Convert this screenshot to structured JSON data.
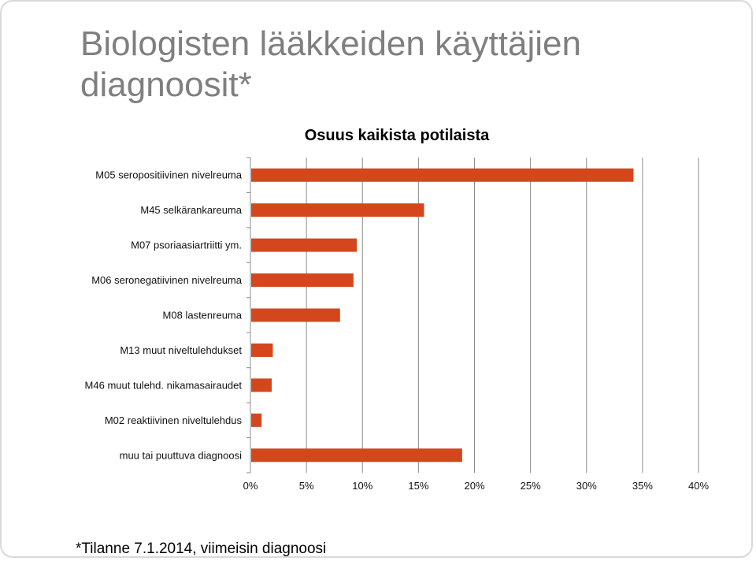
{
  "slide": {
    "title": "Biologisten lääkkeiden käyttäjien diagnoosit*",
    "footnote": "*Tilanne 7.1.2014, viimeisin diagnoosi"
  },
  "chart_data": {
    "type": "bar",
    "orientation": "horizontal",
    "title": "Osuus kaikista potilaista",
    "categories": [
      "M05 seropositiivinen nivelreuma",
      "M45 selkärankareuma",
      "M07 psoriaasiartriitti ym.",
      "M06 seronegatiivinen nivelreuma",
      "M08 lastenreuma",
      "M13 muut niveltulehdukset",
      "M46 muut tulehd. nikamasairaudet",
      "M02 reaktiivinen niveltulehdus",
      "muu tai puuttuva diagnoosi"
    ],
    "values": [
      34.2,
      15.5,
      9.5,
      9.2,
      8.0,
      2.0,
      1.9,
      1.0,
      18.9
    ],
    "xlim": [
      0,
      40
    ],
    "xticks": [
      "0%",
      "5%",
      "10%",
      "15%",
      "20%",
      "25%",
      "30%",
      "35%",
      "40%"
    ],
    "grid": true,
    "bar_color": "#d4471c",
    "grid_color": "#8c8c8c"
  }
}
